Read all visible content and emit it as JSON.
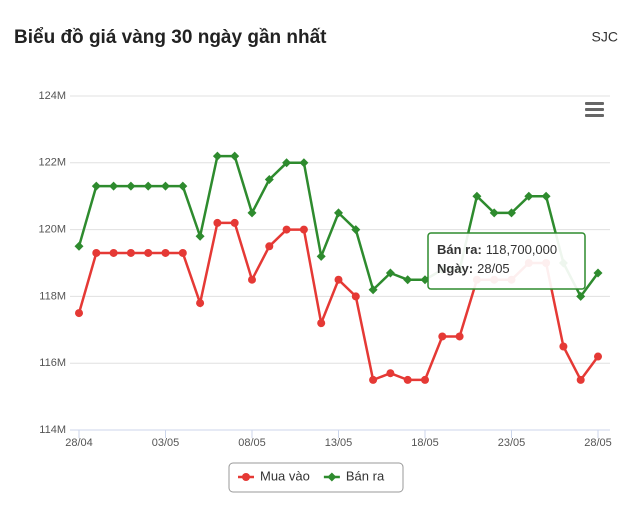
{
  "chart_data": {
    "type": "line",
    "title": "Biểu đồ giá vàng 30 ngày gần nhất",
    "source": "SJC",
    "categories": [
      "28/04",
      null,
      null,
      null,
      null,
      "03/05",
      null,
      null,
      null,
      null,
      "08/05",
      null,
      null,
      null,
      null,
      "13/05",
      null,
      null,
      null,
      null,
      "18/05",
      null,
      null,
      null,
      null,
      "23/05",
      null,
      null,
      null,
      null,
      "28/05"
    ],
    "series": [
      {
        "name": "Mua vào",
        "color": "#e53935",
        "marker": "circle",
        "values": [
          117500000,
          119300000,
          119300000,
          119300000,
          119300000,
          119300000,
          119300000,
          117800000,
          120200000,
          120200000,
          118500000,
          119500000,
          120000000,
          120000000,
          117200000,
          118500000,
          118000000,
          115500000,
          115700000,
          115500000,
          115500000,
          116800000,
          116800000,
          118500000,
          118500000,
          118500000,
          119000000,
          119000000,
          116500000,
          115500000,
          116200000
        ]
      },
      {
        "name": "Bán ra",
        "color": "#2e8b2e",
        "marker": "diamond",
        "values": [
          119500000,
          121300000,
          121300000,
          121300000,
          121300000,
          121300000,
          121300000,
          119800000,
          122200000,
          122200000,
          120500000,
          121500000,
          122000000,
          122000000,
          119200000,
          120500000,
          120000000,
          118200000,
          118700000,
          118500000,
          118500000,
          118800000,
          118800000,
          121000000,
          120500000,
          120500000,
          121000000,
          121000000,
          119000000,
          118000000,
          118700000
        ]
      }
    ],
    "ylim": [
      114000000,
      124000000
    ],
    "yticks": [
      {
        "value": 114000000,
        "label": "114M"
      },
      {
        "value": 116000000,
        "label": "116M"
      },
      {
        "value": 118000000,
        "label": "118M"
      },
      {
        "value": 120000000,
        "label": "120M"
      },
      {
        "value": 122000000,
        "label": "122M"
      },
      {
        "value": 124000000,
        "label": "124M"
      }
    ],
    "grid": true,
    "tooltip": {
      "name_label": "Bán ra:",
      "value_label": "118,700,000",
      "x_name": "Ngày:",
      "x_label": "28/05"
    }
  }
}
